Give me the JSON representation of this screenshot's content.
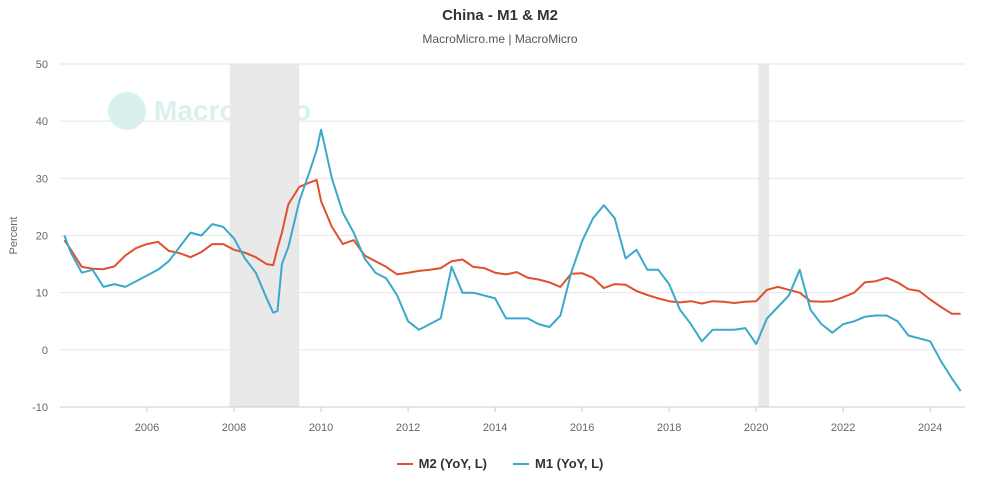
{
  "chart_data": {
    "type": "line",
    "title": "China - M1 & M2",
    "subtitle": "MacroMicro.me | MacroMicro",
    "ylabel": "Percent",
    "xlabel": "",
    "ylim": [
      -10,
      50
    ],
    "yticks": [
      -10,
      0,
      10,
      20,
      30,
      40,
      50
    ],
    "xlim": [
      2004.0,
      2024.8
    ],
    "xticks": [
      2006,
      2008,
      2010,
      2012,
      2014,
      2016,
      2018,
      2020,
      2022,
      2024
    ],
    "grid": true,
    "legend_position": "bottom-center",
    "watermark": "MacroMicro",
    "shaded_periods": [
      [
        2007.9,
        2009.5
      ],
      [
        2020.05,
        2020.3
      ]
    ],
    "series": [
      {
        "name": "M2 (YoY, L)",
        "color": "#e0502e",
        "x": [
          2004.1,
          2004.25,
          2004.5,
          2004.75,
          2005.0,
          2005.25,
          2005.5,
          2005.75,
          2006.0,
          2006.25,
          2006.5,
          2006.75,
          2007.0,
          2007.25,
          2007.5,
          2007.75,
          2008.0,
          2008.25,
          2008.5,
          2008.75,
          2008.9,
          2009.0,
          2009.1,
          2009.25,
          2009.5,
          2009.75,
          2009.9,
          2010.0,
          2010.25,
          2010.5,
          2010.75,
          2011.0,
          2011.25,
          2011.5,
          2011.75,
          2012.0,
          2012.25,
          2012.5,
          2012.75,
          2013.0,
          2013.25,
          2013.5,
          2013.75,
          2014.0,
          2014.25,
          2014.5,
          2014.75,
          2015.0,
          2015.25,
          2015.5,
          2015.75,
          2016.0,
          2016.25,
          2016.5,
          2016.75,
          2017.0,
          2017.25,
          2017.5,
          2017.75,
          2018.0,
          2018.25,
          2018.5,
          2018.75,
          2019.0,
          2019.25,
          2019.5,
          2019.75,
          2020.0,
          2020.25,
          2020.5,
          2020.75,
          2021.0,
          2021.25,
          2021.5,
          2021.75,
          2022.0,
          2022.25,
          2022.5,
          2022.75,
          2023.0,
          2023.25,
          2023.5,
          2023.75,
          2024.0,
          2024.25,
          2024.5,
          2024.7
        ],
        "y": [
          19.2,
          17.5,
          14.5,
          14.2,
          14.1,
          14.6,
          16.5,
          17.8,
          18.5,
          18.9,
          17.3,
          16.9,
          16.2,
          17.1,
          18.5,
          18.5,
          17.5,
          17.0,
          16.2,
          15.0,
          14.8,
          17.8,
          20.5,
          25.5,
          28.5,
          29.3,
          29.7,
          26.0,
          21.5,
          18.5,
          19.2,
          16.5,
          15.5,
          14.5,
          13.2,
          13.5,
          13.8,
          14.0,
          14.3,
          15.5,
          15.8,
          14.5,
          14.3,
          13.5,
          13.2,
          13.6,
          12.6,
          12.3,
          11.8,
          11.0,
          13.3,
          13.4,
          12.6,
          10.8,
          11.5,
          11.4,
          10.3,
          9.6,
          9.0,
          8.5,
          8.3,
          8.5,
          8.1,
          8.5,
          8.4,
          8.2,
          8.4,
          8.5,
          10.5,
          11.0,
          10.5,
          10.0,
          8.5,
          8.4,
          8.5,
          9.2,
          10.0,
          11.8,
          12.0,
          12.6,
          11.8,
          10.6,
          10.3,
          8.8,
          7.5,
          6.3,
          6.3
        ]
      },
      {
        "name": "M1 (YoY, L)",
        "color": "#3ba9cc",
        "x": [
          2004.1,
          2004.25,
          2004.5,
          2004.75,
          2005.0,
          2005.25,
          2005.5,
          2005.75,
          2006.0,
          2006.25,
          2006.5,
          2006.75,
          2007.0,
          2007.25,
          2007.5,
          2007.75,
          2008.0,
          2008.25,
          2008.5,
          2008.75,
          2008.9,
          2009.0,
          2009.1,
          2009.25,
          2009.5,
          2009.75,
          2009.9,
          2010.0,
          2010.25,
          2010.5,
          2010.75,
          2011.0,
          2011.25,
          2011.5,
          2011.75,
          2012.0,
          2012.25,
          2012.5,
          2012.75,
          2013.0,
          2013.25,
          2013.5,
          2013.75,
          2014.0,
          2014.25,
          2014.5,
          2014.75,
          2015.0,
          2015.25,
          2015.5,
          2015.75,
          2016.0,
          2016.25,
          2016.5,
          2016.75,
          2017.0,
          2017.25,
          2017.5,
          2017.75,
          2018.0,
          2018.25,
          2018.5,
          2018.75,
          2019.0,
          2019.25,
          2019.5,
          2019.75,
          2020.0,
          2020.25,
          2020.5,
          2020.75,
          2021.0,
          2021.25,
          2021.5,
          2021.75,
          2022.0,
          2022.25,
          2022.5,
          2022.75,
          2023.0,
          2023.25,
          2023.5,
          2023.75,
          2024.0,
          2024.25,
          2024.5,
          2024.7
        ],
        "y": [
          20.0,
          17.0,
          13.5,
          14.0,
          11.0,
          11.5,
          11.0,
          12.0,
          13.0,
          14.0,
          15.5,
          18.0,
          20.5,
          20.0,
          22.0,
          21.5,
          19.5,
          16.0,
          13.5,
          9.0,
          6.5,
          6.8,
          15.0,
          18.0,
          26.0,
          31.5,
          35.0,
          38.5,
          30.0,
          24.0,
          20.5,
          16.0,
          13.5,
          12.5,
          9.5,
          5.0,
          3.5,
          4.5,
          5.5,
          14.5,
          10.0,
          10.0,
          9.5,
          9.0,
          5.5,
          5.5,
          5.5,
          4.5,
          4.0,
          6.0,
          13.5,
          19.0,
          23.0,
          25.3,
          23.0,
          16.0,
          17.5,
          14.0,
          14.0,
          11.5,
          7.0,
          4.5,
          1.5,
          3.5,
          3.5,
          3.5,
          3.8,
          1.0,
          5.5,
          7.5,
          9.5,
          14.0,
          7.0,
          4.5,
          3.0,
          4.5,
          5.0,
          5.8,
          6.0,
          6.0,
          5.0,
          2.5,
          2.0,
          1.5,
          -2.0,
          -5.0,
          -7.2
        ]
      }
    ]
  }
}
